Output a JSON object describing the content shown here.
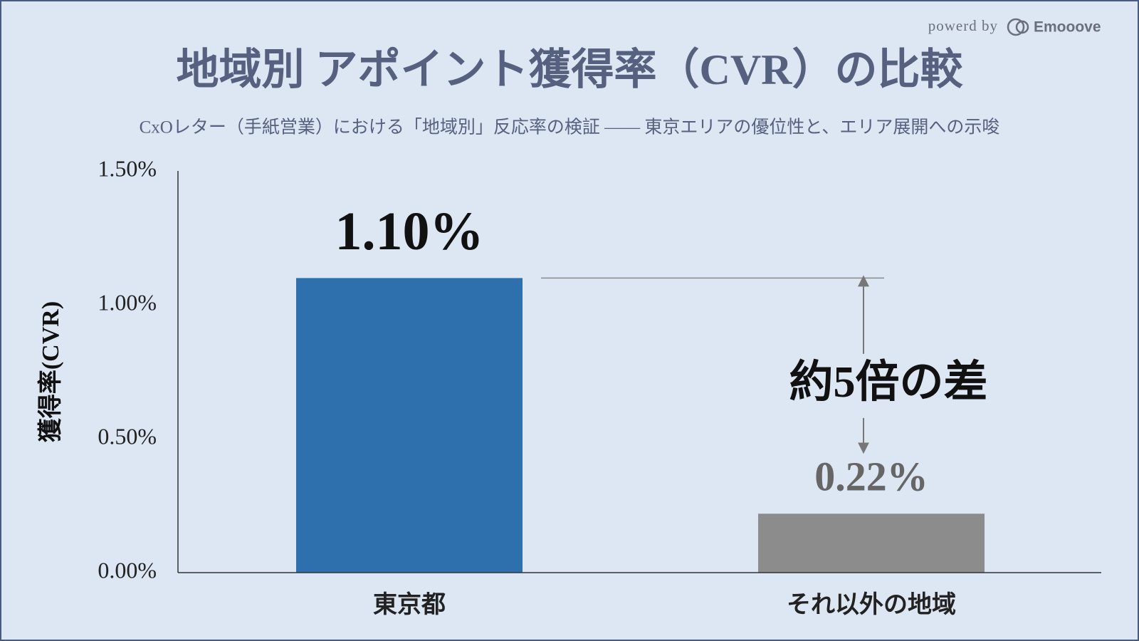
{
  "chart_data": {
    "type": "bar",
    "brand_prefix": "powerd by",
    "brand": "Emooove",
    "title": "地域別 アポイント獲得率（CVR）の比較",
    "subtitle": "CxOレター（手紙営業）における「地域別」反応率の検証 —— 東京エリアの優位性と、エリア展開への示唆",
    "y_label": "獲得率(CVR)",
    "categories": [
      "東京都",
      "それ以外の地域"
    ],
    "values": [
      1.1,
      0.22
    ],
    "value_labels": [
      "1.10%",
      "0.22%"
    ],
    "colors": [
      "#2e6fad",
      "#8c8c8c"
    ],
    "ylim": [
      0,
      1.5
    ],
    "yticks": [
      {
        "value": 0,
        "label": "0.00%"
      },
      {
        "value": 0.5,
        "label": "0.50%"
      },
      {
        "value": 1.0,
        "label": "1.00%"
      },
      {
        "value": 1.5,
        "label": "1.50%"
      }
    ],
    "annotation": "約5倍の差"
  }
}
